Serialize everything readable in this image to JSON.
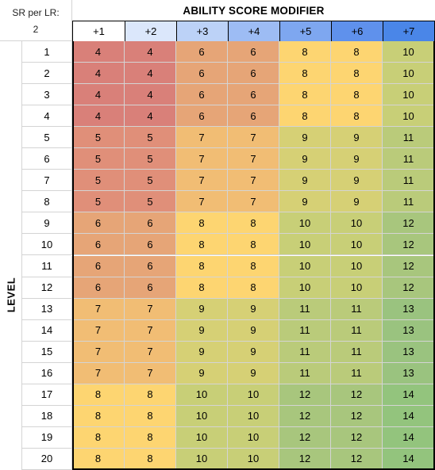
{
  "sheet": {
    "corner": {
      "label": "SR per LR:",
      "value": "2"
    },
    "title": "ABILITY SCORE MODIFIER",
    "row_axis_label": "LEVEL",
    "columns": [
      "+1",
      "+2",
      "+3",
      "+4",
      "+5",
      "+6",
      "+7"
    ],
    "header_colors": [
      "#ffffff",
      "#dbe7fb",
      "#bcd2f7",
      "#9dbcf4",
      "#7ea7f0",
      "#5f91ec",
      "#4a86e8"
    ],
    "value_colors": {
      "4": "#d98079",
      "5": "#e08f79",
      "6": "#e6a577",
      "7": "#f1bd74",
      "8": "#fdd571",
      "9": "#d6d075",
      "10": "#c8cf77",
      "11": "#bacb7a",
      "12": "#a8c67d",
      "13": "#9ac37f",
      "14": "#93c47d"
    },
    "rows": [
      {
        "level": "1",
        "values": [
          "4",
          "4",
          "6",
          "6",
          "8",
          "8",
          "10"
        ]
      },
      {
        "level": "2",
        "values": [
          "4",
          "4",
          "6",
          "6",
          "8",
          "8",
          "10"
        ]
      },
      {
        "level": "3",
        "values": [
          "4",
          "4",
          "6",
          "6",
          "8",
          "8",
          "10"
        ]
      },
      {
        "level": "4",
        "values": [
          "4",
          "4",
          "6",
          "6",
          "8",
          "8",
          "10"
        ]
      },
      {
        "level": "5",
        "values": [
          "5",
          "5",
          "7",
          "7",
          "9",
          "9",
          "11"
        ]
      },
      {
        "level": "6",
        "values": [
          "5",
          "5",
          "7",
          "7",
          "9",
          "9",
          "11"
        ]
      },
      {
        "level": "7",
        "values": [
          "5",
          "5",
          "7",
          "7",
          "9",
          "9",
          "11"
        ]
      },
      {
        "level": "8",
        "values": [
          "5",
          "5",
          "7",
          "7",
          "9",
          "9",
          "11"
        ]
      },
      {
        "level": "9",
        "values": [
          "6",
          "6",
          "8",
          "8",
          "10",
          "10",
          "12"
        ]
      },
      {
        "level": "10",
        "values": [
          "6",
          "6",
          "8",
          "8",
          "10",
          "10",
          "12"
        ]
      },
      {
        "level": "11",
        "values": [
          "6",
          "6",
          "8",
          "8",
          "10",
          "10",
          "12"
        ]
      },
      {
        "level": "12",
        "values": [
          "6",
          "6",
          "8",
          "8",
          "10",
          "10",
          "12"
        ]
      },
      {
        "level": "13",
        "values": [
          "7",
          "7",
          "9",
          "9",
          "11",
          "11",
          "13"
        ]
      },
      {
        "level": "14",
        "values": [
          "7",
          "7",
          "9",
          "9",
          "11",
          "11",
          "13"
        ]
      },
      {
        "level": "15",
        "values": [
          "7",
          "7",
          "9",
          "9",
          "11",
          "11",
          "13"
        ]
      },
      {
        "level": "16",
        "values": [
          "7",
          "7",
          "9",
          "9",
          "11",
          "11",
          "13"
        ]
      },
      {
        "level": "17",
        "values": [
          "8",
          "8",
          "10",
          "10",
          "12",
          "12",
          "14"
        ]
      },
      {
        "level": "18",
        "values": [
          "8",
          "8",
          "10",
          "10",
          "12",
          "12",
          "14"
        ]
      },
      {
        "level": "19",
        "values": [
          "8",
          "8",
          "10",
          "10",
          "12",
          "12",
          "14"
        ]
      },
      {
        "level": "20",
        "values": [
          "8",
          "8",
          "10",
          "10",
          "12",
          "12",
          "14"
        ]
      }
    ]
  }
}
